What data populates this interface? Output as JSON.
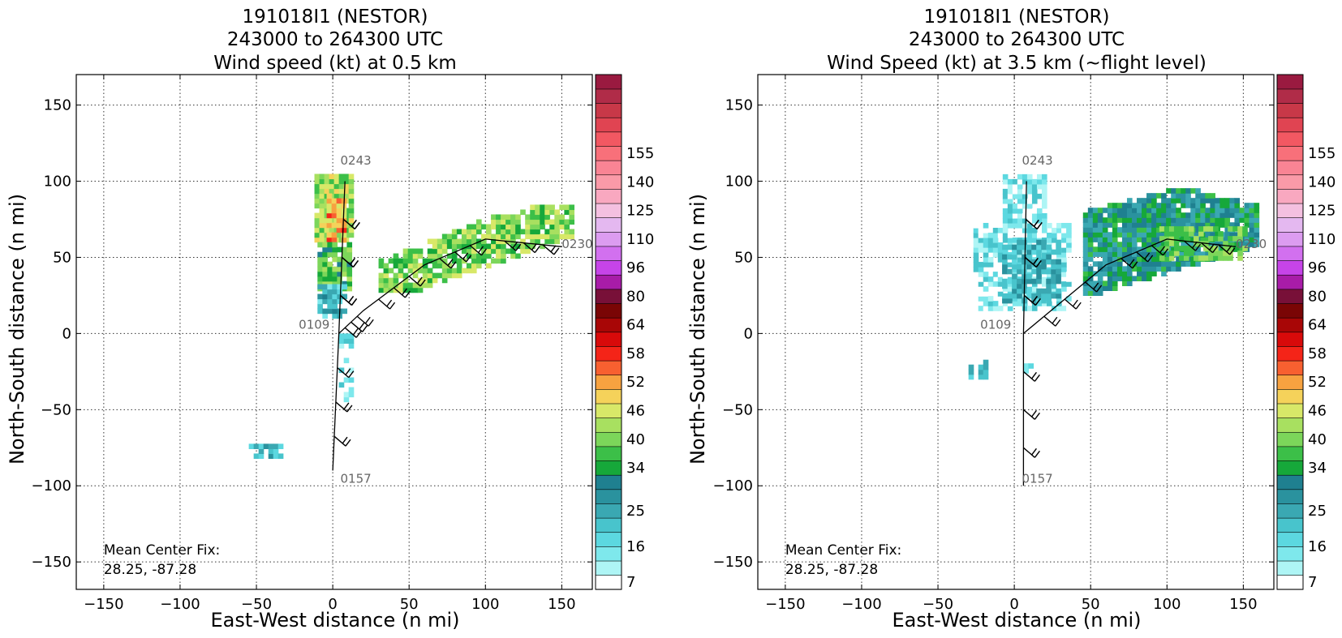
{
  "colorbar": {
    "labels": [
      "7",
      "16",
      "25",
      "34",
      "40",
      "46",
      "52",
      "58",
      "64",
      "80",
      "96",
      "110",
      "125",
      "140",
      "155"
    ],
    "colors": [
      "#ffffff",
      "#aef5f5",
      "#7ee8ec",
      "#5cd8e0",
      "#48c4cc",
      "#3aa8b2",
      "#2a929e",
      "#1f8090",
      "#16a83a",
      "#3cbf48",
      "#7cd65a",
      "#a8e060",
      "#d8e868",
      "#f5d25a",
      "#f7a240",
      "#f86030",
      "#f42418",
      "#d80a0a",
      "#a80606",
      "#7a0505",
      "#781038",
      "#a81ca8",
      "#c644e8",
      "#d270ef",
      "#dc9cf0",
      "#e4b8f0",
      "#f4c0e0",
      "#f9a8c0",
      "#fa9aa8",
      "#f98494",
      "#f8707a",
      "#f25862",
      "#e04452",
      "#c83848",
      "#b02c48",
      "#9a1a40"
    ]
  },
  "panels": [
    {
      "title_line1": "191018I1 (NESTOR)",
      "title_line2": "243000 to 264300 UTC",
      "title_line3": "Wind speed (kt) at 0.5 km",
      "xlabel": "East-West distance (n mi)",
      "ylabel": "North-South distance (n mi)",
      "fix_label": "Mean Center Fix:",
      "fix_value": "28.25, -87.28",
      "track_labels": [
        "0243",
        "0109",
        "0157",
        "0230"
      ],
      "xticks": [
        "−150",
        "−100",
        "−50",
        "0",
        "50",
        "100",
        "150"
      ],
      "yticks": [
        "150",
        "100",
        "50",
        "0",
        "−50",
        "−100",
        "−150"
      ]
    },
    {
      "title_line1": "191018I1 (NESTOR)",
      "title_line2": "243000 to 264300 UTC",
      "title_line3": "Wind Speed (kt) at 3.5 km (~flight level)",
      "xlabel": "East-West distance (n mi)",
      "ylabel": "North-South distance (n mi)",
      "fix_label": "Mean Center Fix:",
      "fix_value": "28.25, -87.28",
      "track_labels": [
        "0243",
        "0109",
        "0157",
        "0230"
      ],
      "xticks": [
        "−150",
        "−100",
        "−50",
        "0",
        "50",
        "100",
        "150"
      ],
      "yticks": [
        "150",
        "100",
        "50",
        "0",
        "−50",
        "−100",
        "−150"
      ]
    }
  ],
  "chart_data": [
    {
      "type": "heatmap",
      "title": "191018I1 (NESTOR) 243000 to 264300 UTC Wind speed (kt) at 0.5 km",
      "xlabel": "East-West distance (n mi)",
      "ylabel": "North-South distance (n mi)",
      "xlim": [
        -168,
        170
      ],
      "ylim": [
        -168,
        170
      ],
      "xticks": [
        -150,
        -100,
        -50,
        0,
        50,
        100,
        150
      ],
      "yticks": [
        -150,
        -100,
        -50,
        0,
        50,
        100,
        150
      ],
      "grid": true,
      "colorbar_range_kt": [
        7,
        160
      ],
      "track": [
        [
          0,
          -90
        ],
        [
          4,
          0
        ],
        [
          8,
          100
        ],
        [
          4,
          0
        ],
        [
          20,
          15
        ],
        [
          60,
          45
        ],
        [
          100,
          62
        ],
        [
          150,
          57
        ]
      ],
      "wind_regions": [
        {
          "x": [
            -12,
            12
          ],
          "y": [
            10,
            102
          ],
          "kt": "34-52 (max ~55)"
        },
        {
          "x": [
            30,
            155
          ],
          "y": [
            27,
            82
          ],
          "kt": "34-46"
        },
        {
          "x": [
            -55,
            -35
          ],
          "y": [
            -82,
            -74
          ],
          "kt": "16-25"
        }
      ]
    },
    {
      "type": "heatmap",
      "title": "191018I1 (NESTOR) 243000 to 264300 UTC Wind Speed (kt) at 3.5 km (~flight level)",
      "xlabel": "East-West distance (n mi)",
      "ylabel": "North-South distance (n mi)",
      "xlim": [
        -168,
        170
      ],
      "ylim": [
        -168,
        170
      ],
      "xticks": [
        -150,
        -100,
        -50,
        0,
        50,
        100,
        150
      ],
      "yticks": [
        -150,
        -100,
        -50,
        0,
        50,
        100,
        150
      ],
      "grid": true,
      "colorbar_range_kt": [
        7,
        160
      ],
      "track": [
        [
          6,
          -100
        ],
        [
          6,
          0
        ],
        [
          8,
          100
        ],
        [
          6,
          0
        ],
        [
          60,
          45
        ],
        [
          100,
          62
        ],
        [
          145,
          57
        ]
      ],
      "wind_regions": [
        {
          "x": [
            -30,
            35
          ],
          "y": [
            15,
            102
          ],
          "kt": "7-25"
        },
        {
          "x": [
            45,
            158
          ],
          "y": [
            25,
            95
          ],
          "kt": "25-40"
        }
      ]
    }
  ]
}
